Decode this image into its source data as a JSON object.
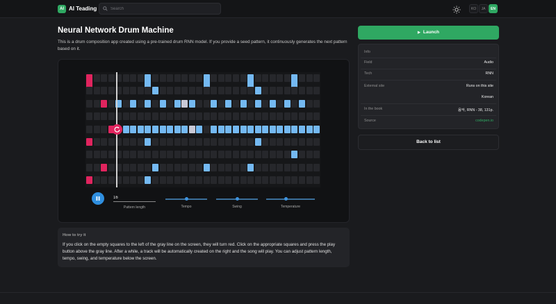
{
  "header": {
    "logo_badge": "AI",
    "app_name": "AI Teading",
    "search_placeholder": "Search",
    "theme_icon": "sun-icon",
    "languages": [
      "KO",
      "JA",
      "EN"
    ],
    "active_language": "EN"
  },
  "page": {
    "title": "Neural Network Drum Machine",
    "description": "This is a drum composition app created using a pre-trained drum RNN model. If you provide a seed pattern, it continuously generates the next pattern based on it."
  },
  "drum_machine": {
    "pattern_length_value": "16",
    "controls": {
      "pattern_length_label": "Pattern length",
      "tempo_label": "Tempo",
      "swing_label": "Swing",
      "temperature_label": "Temperature"
    },
    "levels": {
      "tempo": 0.5,
      "swing": 0.5,
      "temperature": 0.4
    },
    "grid": {
      "rows": 9,
      "columns": 32,
      "seed_columns": 4,
      "user_cells": [
        [
          0,
          0
        ],
        [
          0,
          0
        ],
        [
          2,
          2
        ],
        [
          4,
          3
        ],
        [
          5,
          0
        ],
        [
          7,
          2
        ],
        [
          8,
          0
        ]
      ],
      "generated_cells": [
        [
          0,
          8
        ],
        [
          0,
          16
        ],
        [
          0,
          22
        ],
        [
          0,
          28
        ],
        [
          1,
          9
        ],
        [
          1,
          23
        ],
        [
          2,
          4
        ],
        [
          2,
          6
        ],
        [
          2,
          8
        ],
        [
          2,
          10
        ],
        [
          2,
          12
        ],
        [
          2,
          14
        ],
        [
          2,
          17
        ],
        [
          2,
          19
        ],
        [
          2,
          21
        ],
        [
          2,
          23
        ],
        [
          2,
          25
        ],
        [
          2,
          27
        ],
        [
          2,
          29
        ],
        [
          4,
          5
        ],
        [
          4,
          6
        ],
        [
          4,
          7
        ],
        [
          4,
          8
        ],
        [
          4,
          9
        ],
        [
          4,
          10
        ],
        [
          4,
          11
        ],
        [
          4,
          12
        ],
        [
          4,
          13
        ],
        [
          4,
          14
        ],
        [
          4,
          15
        ],
        [
          4,
          17
        ],
        [
          4,
          18
        ],
        [
          4,
          19
        ],
        [
          4,
          20
        ],
        [
          4,
          21
        ],
        [
          4,
          22
        ],
        [
          4,
          23
        ],
        [
          4,
          24
        ],
        [
          4,
          25
        ],
        [
          4,
          26
        ],
        [
          4,
          27
        ],
        [
          4,
          28
        ],
        [
          4,
          29
        ],
        [
          4,
          30
        ],
        [
          4,
          31
        ],
        [
          5,
          8
        ],
        [
          5,
          23
        ],
        [
          6,
          28
        ],
        [
          7,
          9
        ],
        [
          7,
          16
        ],
        [
          7,
          22
        ],
        [
          8,
          8
        ]
      ],
      "reminder_cells": [
        [
          2,
          13
        ],
        [
          4,
          14
        ]
      ]
    }
  },
  "howto": {
    "heading": "How to try it",
    "body": "If you click on the empty squares to the left of the gray line on the screen, they will turn red. Click on the appropriate squares and press the play button above the gray line. After a while, a track will be automatically created on the right and the song will play. You can adjust pattern length, tempo, swing, and temperature below the screen."
  },
  "sidebar": {
    "launch_label": "Launch",
    "info_title": "Info",
    "rows": [
      {
        "key": "Field",
        "value": "Audio"
      },
      {
        "key": "Tech",
        "value": "RNN"
      },
      {
        "key": "External site",
        "value": "Runs on this site"
      },
      {
        "key": "",
        "value": "Korean"
      },
      {
        "key": "In the book",
        "value": "음악, RNN - 38, 131p."
      },
      {
        "key": "Source",
        "value": "codepen.io"
      }
    ],
    "source_color": "#2fa862",
    "back_label": "Back to list"
  },
  "colors": {
    "accent": "#2fa862",
    "seed": "#e0245e",
    "generated": "#74b9f2",
    "play": "#2f8fe0"
  }
}
